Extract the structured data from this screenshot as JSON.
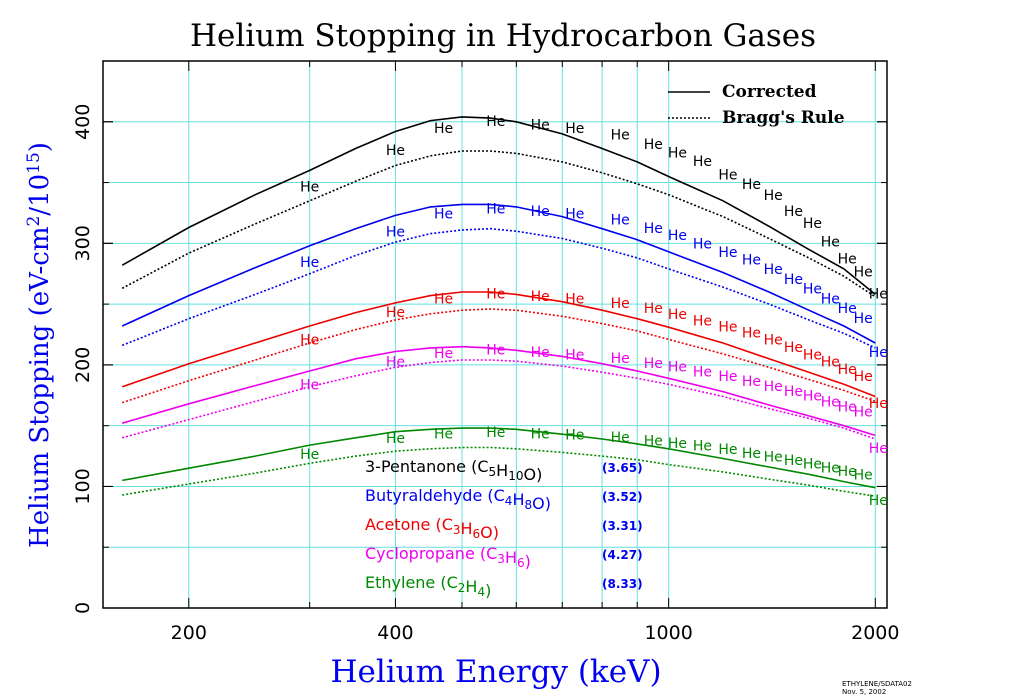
{
  "chart_data": {
    "type": "line",
    "title": "Helium Stopping in Hydrocarbon Gases",
    "xlabel": "Helium Energy (keV)",
    "ylabel_main": "Helium Stopping (eV-cm",
    "ylabel_sup1": "2",
    "ylabel_mid": "/10",
    "ylabel_sup2": "15",
    "ylabel_end": ")",
    "x_scale": "log",
    "xlim": [
      150,
      2080
    ],
    "ylim": [
      0,
      450
    ],
    "x_ticks": [
      200,
      400,
      1000,
      2000
    ],
    "x_tick_labels": [
      "200",
      "400",
      "1000",
      "2000"
    ],
    "y_ticks": [
      0,
      100,
      200,
      300,
      400
    ],
    "y_tick_labels": [
      "0",
      "100",
      "200",
      "300",
      "400"
    ],
    "x_grid_lines": [
      200,
      300,
      400,
      500,
      600,
      700,
      800,
      900,
      1000,
      2000
    ],
    "y_grid_lines": [
      50,
      100,
      150,
      200,
      250,
      300,
      350,
      400
    ],
    "grid": true,
    "marker_label": "He",
    "legend": {
      "position": "top-right",
      "entries": [
        {
          "label": "Corrected",
          "style": "solid"
        },
        {
          "label": "Bragg's Rule",
          "style": "dotted"
        }
      ]
    },
    "footnote": [
      "ETHYLENE/SDATA02",
      "Nov. 5, 2002"
    ],
    "series": [
      {
        "compound": "3-Pentanone",
        "formula": [
          [
            "C",
            ""
          ],
          [
            "5",
            "sub"
          ],
          [
            "H",
            ""
          ],
          [
            "10",
            "sub"
          ],
          [
            "O",
            ""
          ]
        ],
        "factor": "(3.65)",
        "color": "#000000",
        "corrected": {
          "x": [
            160,
            200,
            250,
            300,
            350,
            400,
            450,
            500,
            550,
            600,
            700,
            800,
            900,
            1000,
            1200,
            1400,
            1600,
            1800,
            2000
          ],
          "y": [
            282,
            313,
            340,
            360,
            378,
            392,
            401,
            404,
            403,
            400,
            390,
            378,
            367,
            355,
            335,
            314,
            295,
            279,
            258
          ]
        },
        "bragg": {
          "x": [
            160,
            200,
            250,
            300,
            350,
            400,
            450,
            500,
            550,
            600,
            700,
            800,
            900,
            1000,
            1200,
            1400,
            1600,
            1800,
            2000
          ],
          "y": [
            263,
            292,
            316,
            335,
            351,
            364,
            372,
            376,
            376,
            374,
            367,
            358,
            349,
            340,
            322,
            304,
            288,
            273,
            256
          ]
        },
        "markers": {
          "x": [
            300,
            400,
            470,
            560,
            650,
            730,
            850,
            950,
            1030,
            1120,
            1220,
            1320,
            1420,
            1520,
            1620,
            1720,
            1820,
            1920,
            2020
          ],
          "y": [
            350,
            380,
            398,
            404,
            401,
            398,
            393,
            385,
            378,
            371,
            360,
            352,
            343,
            330,
            320,
            305,
            291,
            280,
            262
          ]
        }
      },
      {
        "compound": "Butyraldehyde",
        "formula": [
          [
            "C",
            ""
          ],
          [
            "4",
            "sub"
          ],
          [
            "H",
            ""
          ],
          [
            "8",
            "sub"
          ],
          [
            "O",
            ""
          ]
        ],
        "factor": "(3.52)",
        "color": "#0000ee",
        "corrected": {
          "x": [
            160,
            200,
            250,
            300,
            350,
            400,
            450,
            500,
            550,
            600,
            700,
            800,
            900,
            1000,
            1200,
            1400,
            1600,
            1800,
            2000
          ],
          "y": [
            232,
            257,
            280,
            298,
            312,
            323,
            330,
            332,
            332,
            330,
            322,
            312,
            303,
            293,
            276,
            260,
            245,
            232,
            218
          ]
        },
        "bragg": {
          "x": [
            160,
            200,
            250,
            300,
            350,
            400,
            450,
            500,
            550,
            600,
            700,
            800,
            900,
            1000,
            1200,
            1400,
            1600,
            1800,
            2000
          ],
          "y": [
            216,
            238,
            258,
            275,
            290,
            301,
            308,
            311,
            312,
            310,
            304,
            296,
            288,
            279,
            264,
            250,
            237,
            226,
            214
          ]
        },
        "markers": {
          "x": [
            300,
            400,
            470,
            560,
            650,
            730,
            850,
            950,
            1030,
            1120,
            1220,
            1320,
            1420,
            1520,
            1620,
            1720,
            1820,
            1920,
            2020
          ],
          "y": [
            288,
            313,
            328,
            332,
            330,
            328,
            323,
            316,
            310,
            303,
            296,
            290,
            282,
            274,
            266,
            258,
            250,
            242,
            214
          ]
        }
      },
      {
        "compound": "Acetone",
        "formula": [
          [
            "C",
            ""
          ],
          [
            "3",
            "sub"
          ],
          [
            "H",
            ""
          ],
          [
            "6",
            "sub"
          ],
          [
            "O",
            ""
          ]
        ],
        "factor": "(3.31)",
        "color": "#ee0000",
        "corrected": {
          "x": [
            160,
            200,
            250,
            300,
            350,
            400,
            450,
            500,
            550,
            600,
            700,
            800,
            900,
            1000,
            1200,
            1400,
            1600,
            1800,
            2000
          ],
          "y": [
            182,
            201,
            218,
            232,
            243,
            251,
            257,
            260,
            260,
            258,
            252,
            245,
            238,
            231,
            218,
            205,
            194,
            184,
            174
          ]
        },
        "bragg": {
          "x": [
            160,
            200,
            250,
            300,
            350,
            400,
            450,
            500,
            550,
            600,
            700,
            800,
            900,
            1000,
            1200,
            1400,
            1600,
            1800,
            2000
          ],
          "y": [
            169,
            187,
            204,
            218,
            229,
            237,
            242,
            245,
            246,
            245,
            240,
            234,
            228,
            221,
            209,
            198,
            188,
            179,
            170
          ]
        },
        "markers": {
          "x": [
            300,
            400,
            470,
            560,
            650,
            730,
            850,
            950,
            1030,
            1120,
            1220,
            1320,
            1420,
            1520,
            1620,
            1720,
            1820,
            1920,
            2020
          ],
          "y": [
            224,
            247,
            258,
            262,
            260,
            258,
            254,
            250,
            245,
            240,
            235,
            230,
            224,
            218,
            212,
            206,
            200,
            194,
            172
          ]
        }
      },
      {
        "compound": "Cyclopropane",
        "formula": [
          [
            "C",
            ""
          ],
          [
            "3",
            "sub"
          ],
          [
            "H",
            ""
          ],
          [
            "6",
            "sub"
          ]
        ],
        "factor": "(4.27)",
        "color": "#ee00ee",
        "corrected": {
          "x": [
            160,
            200,
            250,
            300,
            350,
            400,
            450,
            500,
            550,
            600,
            700,
            800,
            900,
            1000,
            1200,
            1400,
            1600,
            1800,
            2000
          ],
          "y": [
            152,
            168,
            183,
            195,
            205,
            211,
            214,
            215,
            214,
            212,
            207,
            201,
            195,
            189,
            178,
            167,
            158,
            150,
            142
          ]
        },
        "bragg": {
          "x": [
            160,
            200,
            250,
            300,
            350,
            400,
            450,
            500,
            550,
            600,
            700,
            800,
            900,
            1000,
            1200,
            1400,
            1600,
            1800,
            2000
          ],
          "y": [
            140,
            155,
            170,
            182,
            191,
            198,
            202,
            204,
            204,
            203,
            199,
            194,
            189,
            184,
            174,
            164,
            156,
            148,
            139
          ]
        },
        "markers": {
          "x": [
            300,
            400,
            470,
            560,
            650,
            730,
            850,
            950,
            1030,
            1120,
            1220,
            1320,
            1420,
            1520,
            1620,
            1720,
            1820,
            1920,
            2020
          ],
          "y": [
            187,
            206,
            213,
            216,
            214,
            212,
            209,
            205,
            202,
            198,
            194,
            190,
            186,
            182,
            178,
            173,
            169,
            165,
            135
          ]
        }
      },
      {
        "compound": "Ethylene",
        "formula": [
          [
            "C",
            ""
          ],
          [
            "2",
            "sub"
          ],
          [
            "H",
            ""
          ],
          [
            "4",
            "sub"
          ]
        ],
        "factor": "(8.33)",
        "color": "#008800",
        "corrected": {
          "x": [
            160,
            200,
            250,
            300,
            350,
            400,
            450,
            500,
            550,
            600,
            700,
            800,
            900,
            1000,
            1200,
            1400,
            1600,
            1800,
            2000
          ],
          "y": [
            105,
            115,
            125,
            134,
            140,
            145,
            147,
            148,
            148,
            147,
            143,
            139,
            135,
            131,
            123,
            116,
            110,
            104,
            99
          ]
        },
        "bragg": {
          "x": [
            160,
            200,
            250,
            300,
            350,
            400,
            450,
            500,
            550,
            600,
            700,
            800,
            900,
            1000,
            1200,
            1400,
            1600,
            1800,
            2000
          ],
          "y": [
            93,
            102,
            111,
            119,
            125,
            129,
            131,
            132,
            132,
            131,
            128,
            125,
            122,
            118,
            112,
            106,
            101,
            96,
            92
          ]
        },
        "markers": {
          "x": [
            300,
            400,
            470,
            560,
            650,
            730,
            850,
            950,
            1030,
            1120,
            1220,
            1320,
            1420,
            1520,
            1620,
            1720,
            1820,
            1920,
            2020
          ],
          "y": [
            130,
            143,
            147,
            148,
            147,
            146,
            144,
            141,
            139,
            137,
            134,
            131,
            128,
            125,
            122,
            119,
            116,
            113,
            92
          ]
        }
      }
    ]
  }
}
